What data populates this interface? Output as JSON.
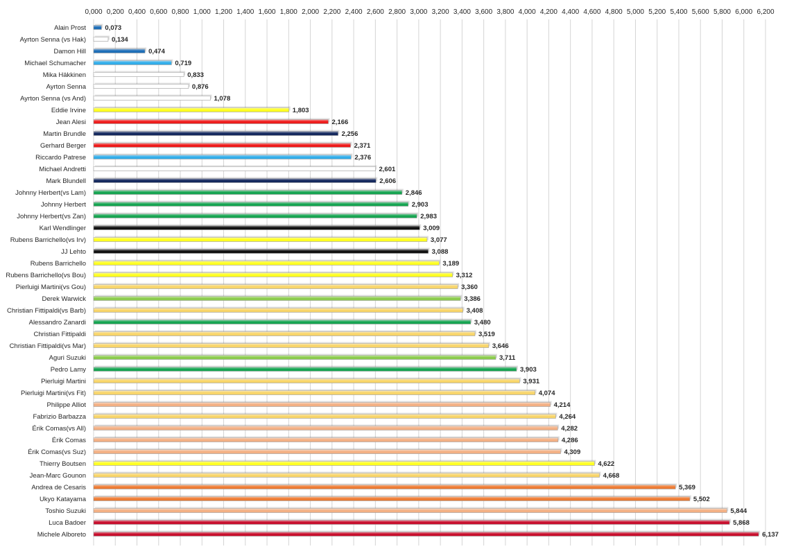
{
  "chart_data": {
    "type": "bar",
    "orientation": "horizontal",
    "title": "",
    "xlabel": "",
    "ylabel": "",
    "xlim": [
      0,
      6.2
    ],
    "x_tick_labels": [
      "0,000",
      "0,200",
      "0,400",
      "0,600",
      "0,800",
      "1,000",
      "1,200",
      "1,400",
      "1,600",
      "1,800",
      "2,000",
      "2,200",
      "2,400",
      "2,600",
      "2,800",
      "3,000",
      "3,200",
      "3,400",
      "3,600",
      "3,800",
      "4,000",
      "4,200",
      "4,400",
      "4,600",
      "4,800",
      "5,000",
      "5,200",
      "5,400",
      "5,600",
      "5,800",
      "6,000",
      "6,200"
    ],
    "x_tick_values": [
      0,
      0.2,
      0.4,
      0.6,
      0.8,
      1.0,
      1.2,
      1.4,
      1.6,
      1.8,
      2.0,
      2.2,
      2.4,
      2.6,
      2.8,
      3.0,
      3.2,
      3.4,
      3.6,
      3.8,
      4.0,
      4.2,
      4.4,
      4.6,
      4.8,
      5.0,
      5.2,
      5.4,
      5.6,
      5.8,
      6.0,
      6.2
    ],
    "grid": true,
    "legend": "none",
    "categories": [
      "Alain Prost",
      "Ayrton Senna (vs Hak)",
      "Damon Hill",
      "Michael Schumacher",
      "Mika Häkkinen",
      "Ayrton Senna",
      "Ayrton Senna (vs And)",
      "Eddie Irvine",
      "Jean Alesi",
      "Martin Brundle",
      "Gerhard Berger",
      "Riccardo Patrese",
      "Michael Andretti",
      "Mark Blundell",
      "Johnny Herbert(vs Lam)",
      "Johnny Herbert",
      "Johnny Herbert(vs Zan)",
      "Karl Wendlinger",
      "Rubens Barrichello(vs Irv)",
      "JJ Lehto",
      "Rubens Barrichello",
      "Rubens Barrichello(vs Bou)",
      "Pierluigi Martini(vs Gou)",
      "Derek Warwick",
      "Christian Fittipaldi(vs Barb)",
      "Alessandro Zanardi",
      "Christian Fittipaldi",
      "Christian Fittipaldi(vs Mar)",
      "Aguri Suzuki",
      "Pedro Lamy",
      "Pierluigi Martini",
      "Pierluigi Martini(vs Fit)",
      "Philippe Alliot",
      "Fabrizio Barbazza",
      "Érik Comas(vs All)",
      "Érik Comas",
      "Érik Comas(vs Suz)",
      "Thierry Boutsen",
      "Jean-Marc Gounon",
      "Andrea de Cesaris",
      "Ukyo Katayama",
      "Toshio Suzuki",
      "Luca Badoer",
      "Michele Alboreto"
    ],
    "values": [
      0.073,
      0.134,
      0.474,
      0.719,
      0.833,
      0.876,
      1.078,
      1.803,
      2.166,
      2.256,
      2.371,
      2.376,
      2.601,
      2.606,
      2.846,
      2.903,
      2.983,
      3.009,
      3.077,
      3.088,
      3.189,
      3.312,
      3.36,
      3.386,
      3.408,
      3.48,
      3.519,
      3.646,
      3.711,
      3.903,
      3.931,
      4.074,
      4.214,
      4.264,
      4.282,
      4.286,
      4.309,
      4.622,
      4.668,
      5.369,
      5.502,
      5.844,
      5.868,
      6.137
    ],
    "value_labels": [
      "0,073",
      "0,134",
      "0,474",
      "0,719",
      "0,833",
      "0,876",
      "1,078",
      "1,803",
      "2,166",
      "2,256",
      "2,371",
      "2,376",
      "2,601",
      "2,606",
      "2,846",
      "2,903",
      "2,983",
      "3,009",
      "3,077",
      "3,088",
      "3,189",
      "3,312",
      "3,360",
      "3,386",
      "3,408",
      "3,480",
      "3,519",
      "3,646",
      "3,711",
      "3,903",
      "3,931",
      "4,074",
      "4,214",
      "4,264",
      "4,282",
      "4,286",
      "4,309",
      "4,622",
      "4,668",
      "5,369",
      "5,502",
      "5,844",
      "5,868",
      "6,137"
    ],
    "bar_colors": [
      "#1f6fb8",
      "#ffffff",
      "#1f6fb8",
      "#33aeea",
      "#ffffff",
      "#ffffff",
      "#ffffff",
      "#ffff22",
      "#ee1c1c",
      "#15295e",
      "#ee1c1c",
      "#33aeea",
      "#ffffff",
      "#15295e",
      "#17a552",
      "#17a552",
      "#17a552",
      "#111111",
      "#ffff22",
      "#111111",
      "#ffff22",
      "#ffff22",
      "#f8d56a",
      "#8ccc4e",
      "#f8d56a",
      "#17a552",
      "#f8d56a",
      "#f8d56a",
      "#8ccc4e",
      "#17a552",
      "#f8d56a",
      "#f8d56a",
      "#f3b084",
      "#f8d56a",
      "#f3b084",
      "#f3b084",
      "#f3b084",
      "#ffff22",
      "#f8d56a",
      "#ee7c34",
      "#ee7c34",
      "#f3b084",
      "#c8102e",
      "#c8102e"
    ],
    "colors": {
      "gridline": "#d4d4d4",
      "bar_outline": "#9a9a9a",
      "label_text": "#262626"
    }
  }
}
